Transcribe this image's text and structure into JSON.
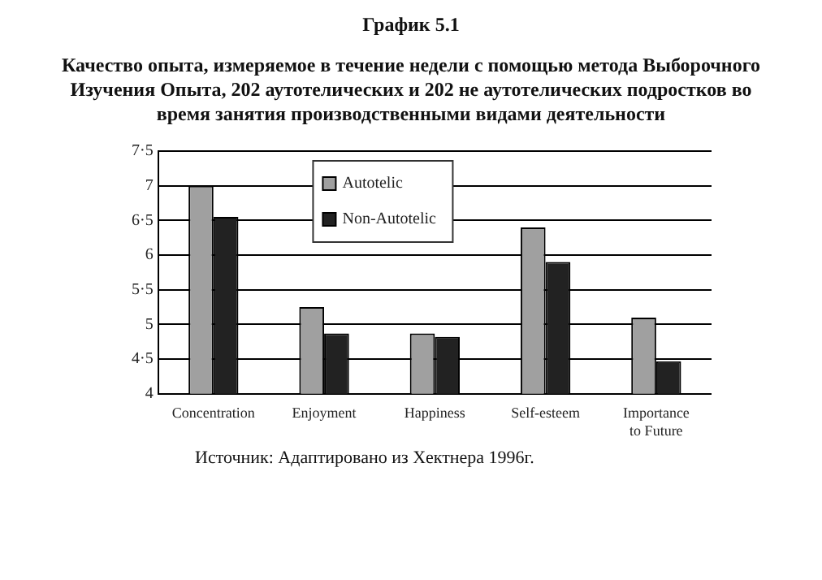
{
  "chart_data": {
    "type": "bar",
    "title": "График 5.1",
    "subtitle": "Качество опыта, измеряемое в течение недели с помощью метода Выборочного Изучения Опыта, 202 аутотелических и 202 не аутотелических подростков во время занятия производственными видами деятельности",
    "categories": [
      "Concentration",
      "Enjoyment",
      "Happiness",
      "Self-esteem",
      "Importance to Future"
    ],
    "series": [
      {
        "name": "Autotelic",
        "color": "#a0a0a0",
        "values": [
          7.0,
          5.25,
          4.87,
          6.4,
          5.1
        ]
      },
      {
        "name": "Non-Autotelic",
        "color": "#222222",
        "values": [
          6.55,
          4.87,
          4.82,
          5.9,
          4.47
        ]
      }
    ],
    "ylim": [
      4,
      7.5
    ],
    "yticks": [
      4,
      {
        "value": 4.5,
        "label": "4·5"
      },
      5,
      {
        "value": 5.5,
        "label": "5·5"
      },
      6,
      {
        "value": 6.5,
        "label": "6·5"
      },
      7,
      {
        "value": 7.5,
        "label": "7·5"
      }
    ],
    "grid": "y",
    "legend": "top",
    "annotations": [
      "Источник: Адаптировано из Хектнера 1996г."
    ]
  }
}
